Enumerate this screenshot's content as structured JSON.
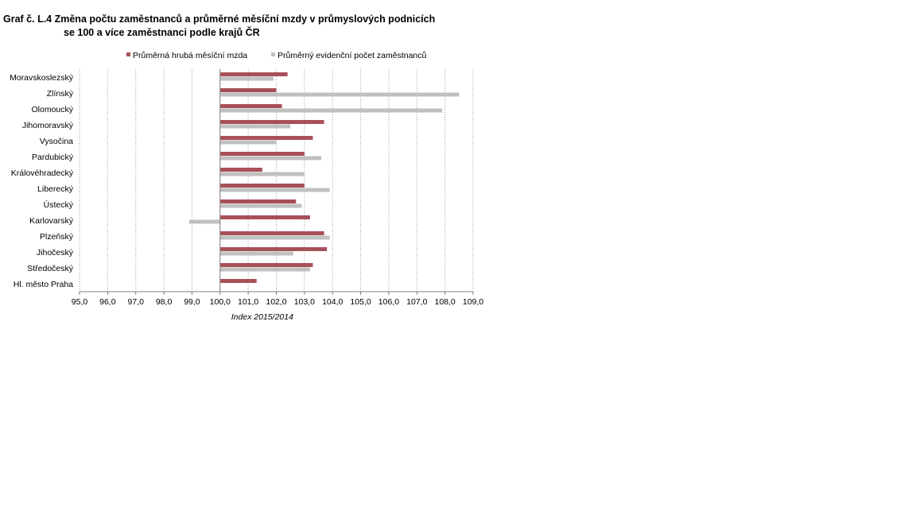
{
  "title_line1": "Graf č. L.4 Změna počtu zaměstnanců a průměrné měsíční mzdy v průmyslových podnicích",
  "title_line2": "se 100 a více zaměstnanci podle krajů ČR",
  "chart_data": {
    "type": "bar",
    "orientation": "horizontal",
    "xlabel": "Index 2015/2014",
    "xlim": [
      95.0,
      109.0
    ],
    "xticks": [
      "95,0",
      "96,0",
      "97,0",
      "98,0",
      "99,0",
      "100,0",
      "101,0",
      "102,0",
      "103,0",
      "104,0",
      "105,0",
      "106,0",
      "107,0",
      "108,0",
      "109,0"
    ],
    "baseline": 100.0,
    "grid": "vertical dotted",
    "legend_position": "top",
    "categories": [
      "Moravskoslezský",
      "Zlínský",
      "Olomoucký",
      "Jihomoravský",
      "Vysočina",
      "Pardubický",
      "Královéhradecký",
      "Liberecký",
      "Ústecký",
      "Karlovarský",
      "Plzeňský",
      "Jihočeský",
      "Středočeský",
      "Hl. město Praha"
    ],
    "series": [
      {
        "name": "Průměrná hrubá měsíční mzda",
        "color": "#a8505a",
        "values": [
          102.4,
          102.0,
          102.2,
          103.7,
          103.3,
          103.0,
          101.5,
          103.0,
          102.7,
          103.2,
          103.7,
          103.8,
          103.3,
          101.3
        ]
      },
      {
        "name": "Průměrný evidenční počet zaměstnanců",
        "color": "#c0c0c0",
        "values": [
          101.9,
          108.5,
          107.9,
          102.5,
          102.0,
          103.6,
          103.0,
          103.9,
          102.9,
          98.9,
          103.9,
          102.6,
          103.2,
          null
        ]
      }
    ]
  }
}
